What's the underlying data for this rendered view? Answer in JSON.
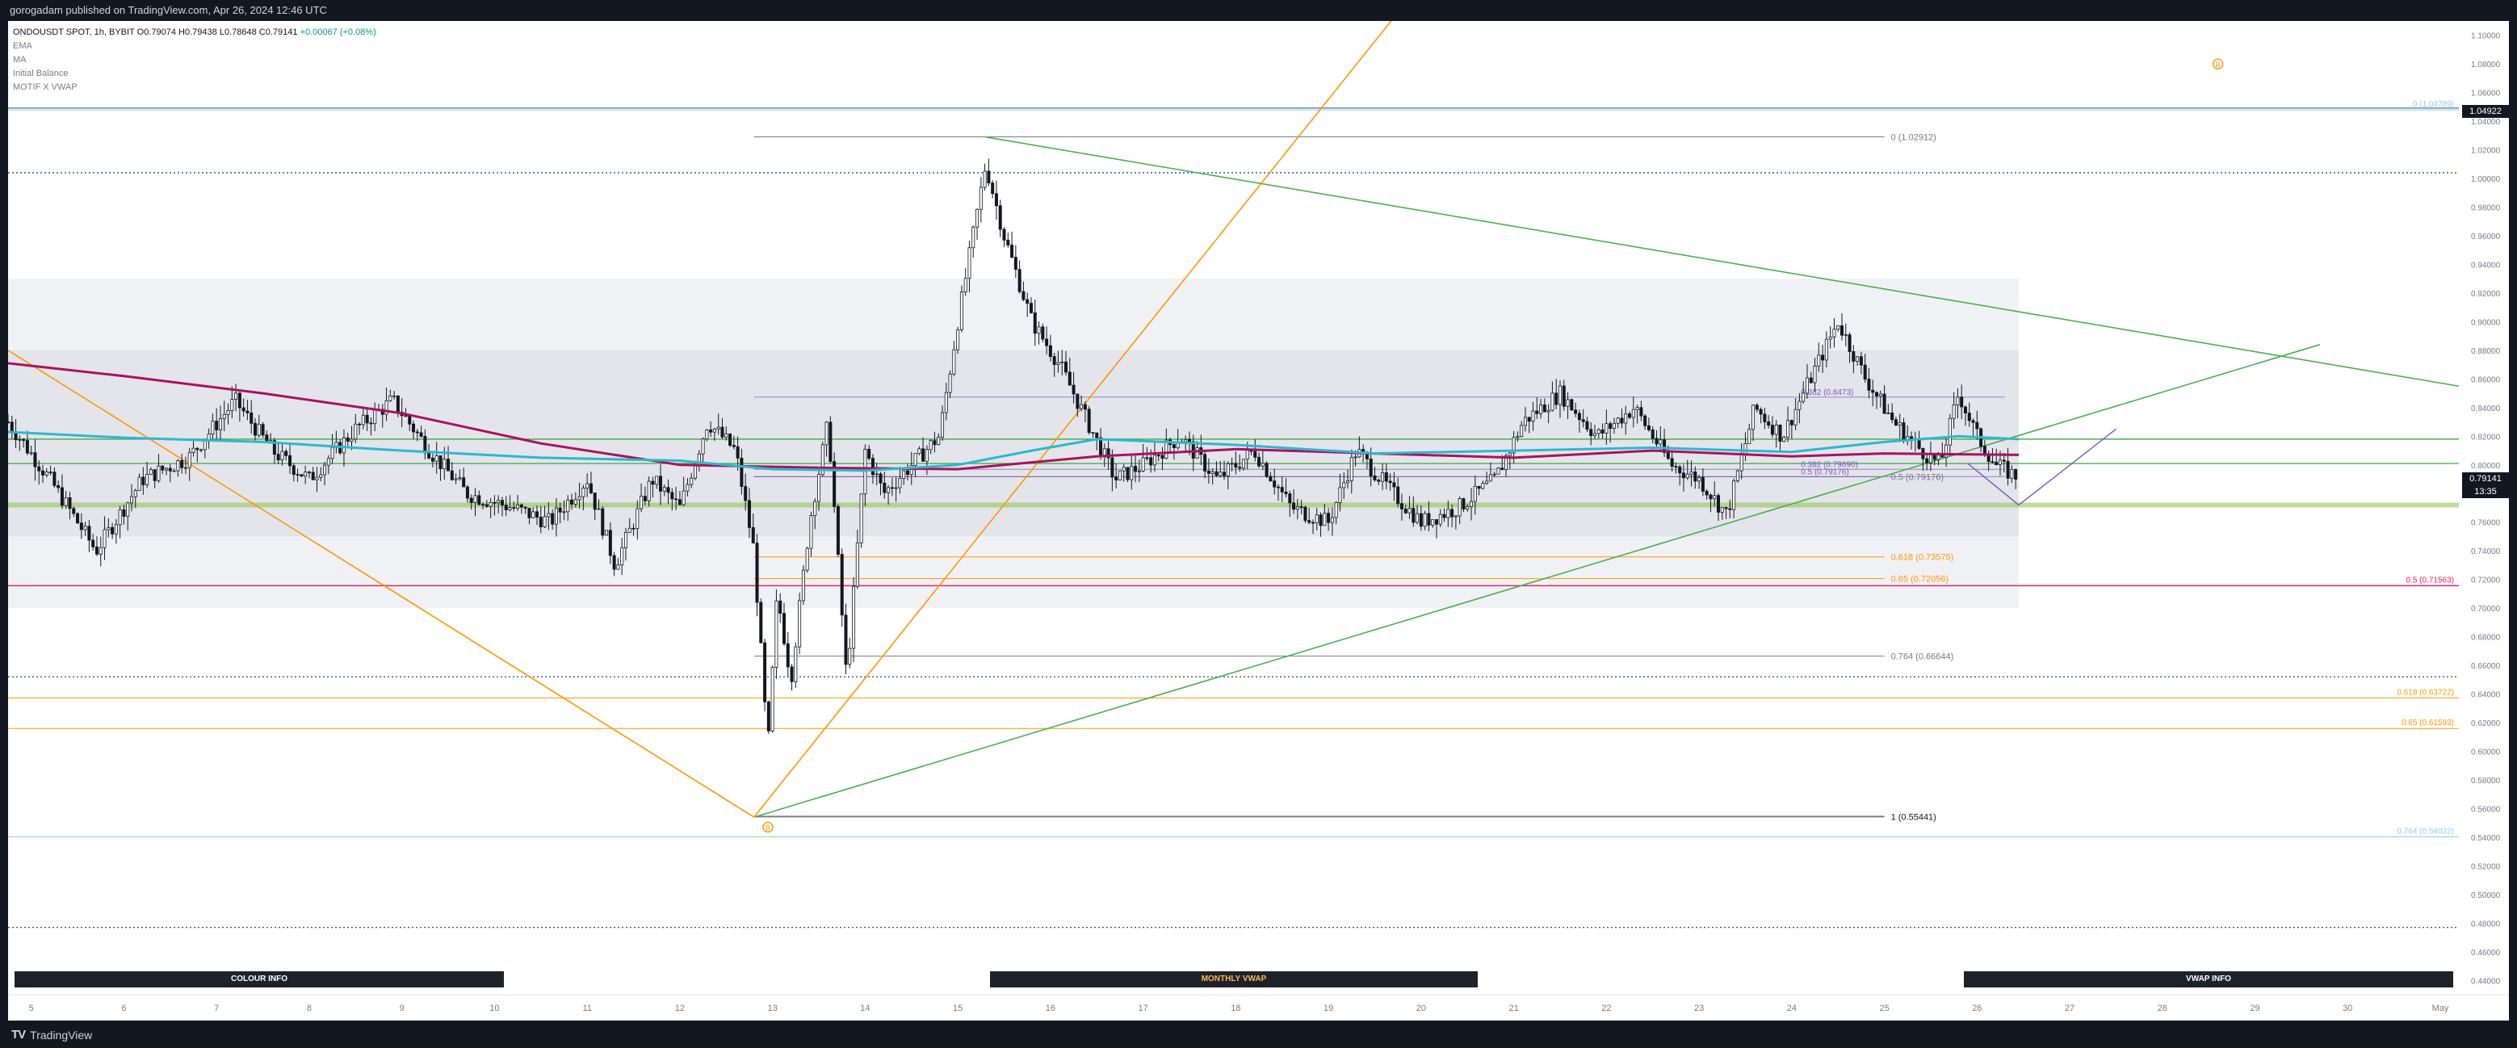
{
  "header": {
    "publish_line": "gorogadam published on TradingView.com, Apr 26, 2024 12:46 UTC"
  },
  "legend": {
    "symbol_line": "ONDOUSDT SPOT, 1h, BYBIT",
    "open_label": "O",
    "open": "0.79074",
    "high_label": "H",
    "high": "0.79438",
    "low_label": "L",
    "low": "0.78648",
    "close_label": "C",
    "close": "0.79141",
    "change": "+0.00067 (+0.08%)",
    "indicators": [
      "EMA",
      "MA",
      "Initial Balance",
      "MOTIF X VWAP"
    ]
  },
  "price_tag": {
    "price": "0.79141",
    "countdown": "13:35"
  },
  "top_tag": "1.04922",
  "info_boxes": {
    "colour": "COLOUR INFO",
    "monthly": "MONTHLY VWAP",
    "vwap": "VWAP INFO"
  },
  "footer": {
    "brand": "TradingView"
  },
  "colors": {
    "up": "#131722",
    "down": "#131722",
    "ema": "#2db8d0",
    "ma": "#a8135f",
    "fib_grey": "#787b86",
    "fib_orange": "#ff9800",
    "trend_green": "#4caf50",
    "vwap_band": "#e0e3eb",
    "purple_fib": "#7e57c2",
    "red_level": "#e91e63"
  },
  "chart_data": {
    "type": "candlestick",
    "symbol": "ONDOUSDT SPOT",
    "interval": "1h",
    "exchange": "BYBIT",
    "ylim": [
      0.43,
      1.11
    ],
    "yticks": [
      1.1,
      1.08,
      1.06,
      1.04,
      1.02,
      1.0,
      0.98,
      0.96,
      0.94,
      0.92,
      0.9,
      0.88,
      0.86,
      0.84,
      0.82,
      0.8,
      0.78,
      0.76,
      0.74,
      0.72,
      0.7,
      0.68,
      0.66,
      0.64,
      0.62,
      0.6,
      0.58,
      0.56,
      0.54,
      0.52,
      0.5,
      0.48,
      0.46,
      0.44
    ],
    "xlim": [
      4.75,
      31.2
    ],
    "xticks": [
      {
        "x": 5,
        "label": "5"
      },
      {
        "x": 6,
        "label": "6"
      },
      {
        "x": 7,
        "label": "7"
      },
      {
        "x": 8,
        "label": "8"
      },
      {
        "x": 9,
        "label": "9"
      },
      {
        "x": 10,
        "label": "10"
      },
      {
        "x": 11,
        "label": "11"
      },
      {
        "x": 12,
        "label": "12"
      },
      {
        "x": 13,
        "label": "13"
      },
      {
        "x": 14,
        "label": "14"
      },
      {
        "x": 15,
        "label": "15"
      },
      {
        "x": 16,
        "label": "16"
      },
      {
        "x": 17,
        "label": "17"
      },
      {
        "x": 18,
        "label": "18"
      },
      {
        "x": 19,
        "label": "19"
      },
      {
        "x": 20,
        "label": "20"
      },
      {
        "x": 21,
        "label": "21"
      },
      {
        "x": 22,
        "label": "22"
      },
      {
        "x": 23,
        "label": "23"
      },
      {
        "x": 24,
        "label": "24"
      },
      {
        "x": 25,
        "label": "25"
      },
      {
        "x": 26,
        "label": "26"
      },
      {
        "x": 27,
        "label": "27"
      },
      {
        "x": 28,
        "label": "28"
      },
      {
        "x": 29,
        "label": "29"
      },
      {
        "x": 30,
        "label": "30"
      },
      {
        "x": 31,
        "label": "May"
      }
    ],
    "price_path": [
      [
        4.75,
        0.83
      ],
      [
        5.2,
        0.79
      ],
      [
        5.7,
        0.74
      ],
      [
        6.2,
        0.79
      ],
      [
        6.7,
        0.805
      ],
      [
        7.2,
        0.845
      ],
      [
        7.6,
        0.81
      ],
      [
        8.0,
        0.79
      ],
      [
        8.5,
        0.825
      ],
      [
        8.9,
        0.845
      ],
      [
        9.3,
        0.81
      ],
      [
        9.7,
        0.78
      ],
      [
        10.2,
        0.77
      ],
      [
        10.6,
        0.76
      ],
      [
        11.0,
        0.79
      ],
      [
        11.3,
        0.73
      ],
      [
        11.7,
        0.79
      ],
      [
        12.0,
        0.77
      ],
      [
        12.3,
        0.83
      ],
      [
        12.6,
        0.81
      ],
      [
        12.8,
        0.74
      ],
      [
        12.95,
        0.6
      ],
      [
        13.05,
        0.71
      ],
      [
        13.2,
        0.65
      ],
      [
        13.4,
        0.76
      ],
      [
        13.6,
        0.83
      ],
      [
        13.8,
        0.65
      ],
      [
        14.0,
        0.81
      ],
      [
        14.2,
        0.78
      ],
      [
        14.5,
        0.8
      ],
      [
        14.8,
        0.82
      ],
      [
        15.0,
        0.9
      ],
      [
        15.3,
        1.01
      ],
      [
        15.5,
        0.96
      ],
      [
        15.8,
        0.9
      ],
      [
        16.1,
        0.87
      ],
      [
        16.4,
        0.83
      ],
      [
        16.7,
        0.79
      ],
      [
        17.0,
        0.8
      ],
      [
        17.4,
        0.82
      ],
      [
        17.8,
        0.79
      ],
      [
        18.2,
        0.81
      ],
      [
        18.6,
        0.77
      ],
      [
        19.0,
        0.76
      ],
      [
        19.3,
        0.81
      ],
      [
        19.7,
        0.78
      ],
      [
        20.0,
        0.76
      ],
      [
        20.4,
        0.77
      ],
      [
        20.8,
        0.79
      ],
      [
        21.1,
        0.83
      ],
      [
        21.5,
        0.85
      ],
      [
        21.9,
        0.82
      ],
      [
        22.3,
        0.84
      ],
      [
        22.7,
        0.8
      ],
      [
        23.0,
        0.79
      ],
      [
        23.3,
        0.765
      ],
      [
        23.6,
        0.84
      ],
      [
        23.9,
        0.82
      ],
      [
        24.2,
        0.86
      ],
      [
        24.5,
        0.9
      ],
      [
        24.8,
        0.86
      ],
      [
        25.1,
        0.83
      ],
      [
        25.4,
        0.81
      ],
      [
        25.6,
        0.8
      ],
      [
        25.8,
        0.85
      ],
      [
        26.0,
        0.82
      ],
      [
        26.2,
        0.8
      ],
      [
        26.45,
        0.791
      ]
    ],
    "ema": [
      [
        4.75,
        0.823
      ],
      [
        6.0,
        0.819
      ],
      [
        7.5,
        0.816
      ],
      [
        9.0,
        0.81
      ],
      [
        10.5,
        0.805
      ],
      [
        12.0,
        0.803
      ],
      [
        13.0,
        0.797
      ],
      [
        14.0,
        0.796
      ],
      [
        15.0,
        0.8
      ],
      [
        15.8,
        0.81
      ],
      [
        16.5,
        0.818
      ],
      [
        18.0,
        0.814
      ],
      [
        19.5,
        0.808
      ],
      [
        21.0,
        0.81
      ],
      [
        22.5,
        0.812
      ],
      [
        24.0,
        0.809
      ],
      [
        25.0,
        0.816
      ],
      [
        25.8,
        0.82
      ],
      [
        26.45,
        0.818
      ]
    ],
    "ma": [
      [
        4.75,
        0.871
      ],
      [
        6.0,
        0.862
      ],
      [
        7.5,
        0.85
      ],
      [
        9.0,
        0.836
      ],
      [
        10.5,
        0.815
      ],
      [
        12.0,
        0.8
      ],
      [
        13.5,
        0.798
      ],
      [
        15.0,
        0.797
      ],
      [
        16.5,
        0.806
      ],
      [
        18.0,
        0.811
      ],
      [
        19.5,
        0.808
      ],
      [
        21.0,
        0.805
      ],
      [
        22.5,
        0.81
      ],
      [
        24.0,
        0.806
      ],
      [
        25.0,
        0.808
      ],
      [
        26.45,
        0.807
      ]
    ],
    "vwap_bands": [
      {
        "outer_top": 0.93,
        "inner_top": 0.88,
        "inner_bottom": 0.75,
        "outer_bottom": 0.7
      }
    ],
    "fib_retracement_left": {
      "levels": [
        {
          "label": "0 (1.02912)",
          "value": 1.02912
        },
        {
          "label": "0.5 (0.79176)",
          "value": 0.79176
        },
        {
          "label": "0.618 (0.73575)",
          "value": 0.73575
        },
        {
          "label": "0.65 (0.72056)",
          "value": 0.72056
        },
        {
          "label": "0.764 (0.66644)",
          "value": 0.66644
        },
        {
          "label": "1 (0.55441)",
          "value": 0.55441
        }
      ]
    },
    "fib_retracement_right": {
      "levels": [
        {
          "label": "0 (1.04789)",
          "value": 1.04789
        },
        {
          "label": "0.5 (0.71563)",
          "value": 0.71563
        },
        {
          "label": "0.618 (0.63722)",
          "value": 0.63722
        },
        {
          "label": "0.65 (0.61593)",
          "value": 0.61593
        },
        {
          "label": "0.764 (0.54022)",
          "value": 0.54022
        }
      ]
    },
    "purple_fib": [
      {
        "label": "0.382 (0.8473)",
        "value": 0.8473
      },
      {
        "label": "0.5 (0.79176)",
        "value": 0.79176
      },
      {
        "label": "0.382 (0.79690)",
        "value": 0.7969
      }
    ],
    "horizontal_levels": [
      {
        "value": 1.04922,
        "color": "#5b7fa8"
      },
      {
        "value": 1.004,
        "color": "#3f51b5",
        "dotted": true
      },
      {
        "value": 0.652,
        "color": "#3f51b5",
        "dotted": true
      },
      {
        "value": 0.477,
        "color": "#3f51b5",
        "dotted": true
      },
      {
        "value": 0.71563,
        "color": "#e91e63"
      },
      {
        "value": 0.818,
        "color": "#4caf50"
      },
      {
        "value": 0.801,
        "color": "#4caf50"
      },
      {
        "value": 0.772,
        "color": "#8bc34a",
        "thick": true
      }
    ],
    "trend_lines": [
      {
        "from": [
          15.3,
          1.029
        ],
        "to": [
          31.2,
          0.855
        ],
        "color": "#4caf50"
      },
      {
        "from": [
          12.8,
          0.554
        ],
        "to": [
          29.7,
          0.884
        ],
        "color": "#4caf50"
      },
      {
        "from": [
          12.8,
          0.554
        ],
        "to": [
          19.8,
          1.12
        ],
        "color": "#ff9800"
      },
      {
        "from": [
          4.75,
          0.88
        ],
        "to": [
          12.8,
          0.554
        ],
        "color": "#ff9800"
      }
    ],
    "markers": [
      {
        "x": 12.95,
        "y": 0.547,
        "label": "B"
      },
      {
        "x": 28.6,
        "y": 1.08,
        "label": "B"
      }
    ]
  }
}
